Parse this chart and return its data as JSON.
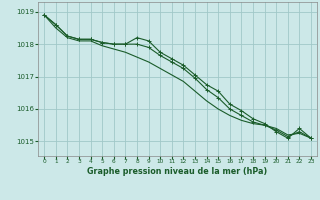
{
  "title": "Graphe pression niveau de la mer (hPa)",
  "bg_color": "#cce8e8",
  "grid_color": "#a0c8c8",
  "line_color": "#1a5c2a",
  "spine_color": "#888888",
  "xlim_min": -0.5,
  "xlim_max": 23.5,
  "ylim_min": 1014.55,
  "ylim_max": 1019.3,
  "yticks": [
    1015,
    1016,
    1017,
    1018,
    1019
  ],
  "xticks": [
    0,
    1,
    2,
    3,
    4,
    5,
    6,
    7,
    8,
    9,
    10,
    11,
    12,
    13,
    14,
    15,
    16,
    17,
    18,
    19,
    20,
    21,
    22,
    23
  ],
  "line1_x": [
    0,
    1,
    2,
    3,
    4,
    5,
    6,
    7,
    8,
    9,
    10,
    11,
    12,
    13,
    14,
    15,
    16,
    17,
    18,
    19,
    20,
    21,
    22,
    23
  ],
  "line1_y": [
    1018.9,
    1018.6,
    1018.25,
    1018.15,
    1018.15,
    1018.05,
    1018.0,
    1018.0,
    1018.2,
    1018.1,
    1017.75,
    1017.55,
    1017.35,
    1017.05,
    1016.75,
    1016.55,
    1016.15,
    1015.95,
    1015.7,
    1015.55,
    1015.3,
    1015.1,
    1015.4,
    1015.1
  ],
  "line2_x": [
    0,
    1,
    2,
    3,
    4,
    5,
    6,
    7,
    8,
    9,
    10,
    11,
    12,
    13,
    14,
    15,
    16,
    17,
    18,
    19,
    20,
    21,
    22,
    23
  ],
  "line2_y": [
    1018.9,
    1018.6,
    1018.25,
    1018.15,
    1018.15,
    1018.05,
    1018.0,
    1018.0,
    1018.0,
    1017.9,
    1017.65,
    1017.45,
    1017.25,
    1016.95,
    1016.6,
    1016.35,
    1016.0,
    1015.8,
    1015.6,
    1015.5,
    1015.35,
    1015.15,
    1015.3,
    1015.1
  ],
  "line3_x": [
    0,
    1,
    2,
    3,
    4,
    5,
    6,
    7,
    8,
    9,
    10,
    11,
    12,
    13,
    14,
    15,
    16,
    17,
    18,
    19,
    20,
    21,
    22,
    23
  ],
  "line3_y": [
    1018.9,
    1018.5,
    1018.2,
    1018.1,
    1018.1,
    1017.95,
    1017.85,
    1017.75,
    1017.6,
    1017.45,
    1017.25,
    1017.05,
    1016.85,
    1016.55,
    1016.25,
    1016.0,
    1015.8,
    1015.65,
    1015.55,
    1015.5,
    1015.4,
    1015.2,
    1015.25,
    1015.1
  ]
}
